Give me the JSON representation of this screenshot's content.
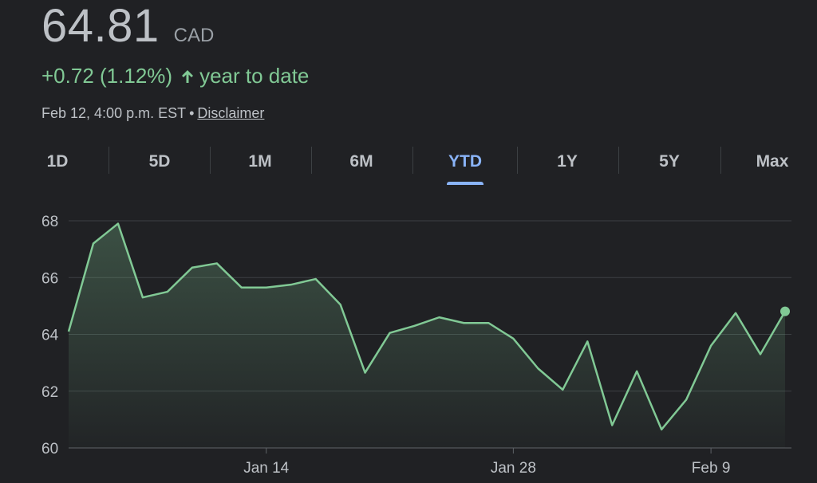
{
  "quote": {
    "price": "64.81",
    "currency": "CAD",
    "change_text": "+0.72 (1.12%)",
    "change_label": "year to date",
    "timestamp": "Feb 12, 4:00 p.m. EST",
    "separator": "•",
    "disclaimer": "Disclaimer"
  },
  "tabs": [
    {
      "label": "1D",
      "active": false
    },
    {
      "label": "5D",
      "active": false
    },
    {
      "label": "1M",
      "active": false
    },
    {
      "label": "6M",
      "active": false
    },
    {
      "label": "YTD",
      "active": true
    },
    {
      "label": "1Y",
      "active": false
    },
    {
      "label": "5Y",
      "active": false
    },
    {
      "label": "Max",
      "active": false
    }
  ],
  "colors": {
    "background": "#202124",
    "line": "#81c995",
    "grid": "#3c4043",
    "text": "#bdc1c6",
    "active_tab": "#8ab4f8"
  },
  "chart_data": {
    "type": "area",
    "ylim": [
      60,
      68
    ],
    "yticks": [
      68,
      66,
      64,
      62,
      60
    ],
    "xtick_labels": [
      {
        "label": "Jan 14",
        "index": 8
      },
      {
        "label": "Jan 28",
        "index": 18
      },
      {
        "label": "Feb 9",
        "index": 26
      }
    ],
    "values": [
      64.1,
      67.2,
      67.9,
      65.3,
      65.5,
      66.35,
      66.5,
      65.65,
      65.65,
      65.75,
      65.95,
      65.05,
      62.65,
      64.05,
      64.3,
      64.6,
      64.4,
      64.4,
      63.85,
      62.8,
      62.05,
      63.75,
      60.8,
      62.7,
      60.65,
      61.7,
      63.6,
      64.75,
      63.3,
      64.81
    ],
    "grid": true
  }
}
